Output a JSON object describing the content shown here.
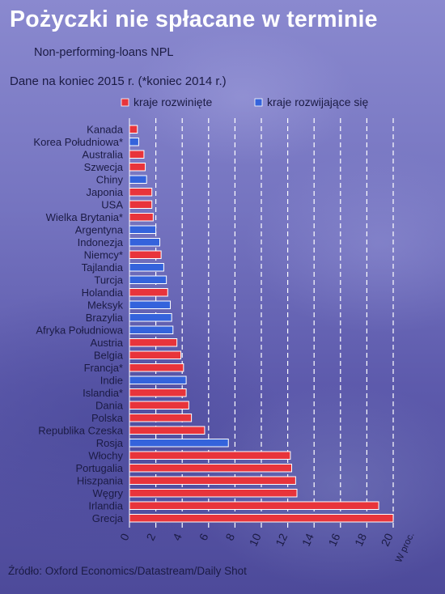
{
  "header": {
    "title": "Pożyczki nie spłacane w terminie",
    "subtitle": "Non-performing-loans NPL",
    "note": "Dane na koniec 2015 r. (*koniec 2014 r.)"
  },
  "footer": {
    "source": "Źródło: Oxford Economics/Datastream/Daily Shot"
  },
  "chart_data": {
    "type": "bar",
    "orientation": "horizontal",
    "title": "",
    "xlabel": "W proc.",
    "ylabel": "",
    "xlim": [
      0,
      20
    ],
    "x_ticks": [
      0,
      2,
      4,
      6,
      8,
      10,
      12,
      14,
      16,
      18,
      20
    ],
    "grid": "vertical dashed",
    "legend_position": "top-right",
    "legend": [
      {
        "key": "developed",
        "label": "kraje rozwinięte",
        "color": "#e8343b"
      },
      {
        "key": "developing",
        "label": "kraje rozwijające się",
        "color": "#3463dc"
      }
    ],
    "categories": [
      "Kanada",
      "Korea Południowa*",
      "Australia",
      "Szwecja",
      "Chiny",
      "Japonia",
      "USA",
      "Wielka Brytania*",
      "Argentyna",
      "Indonezja",
      "Niemcy*",
      "Tajlandia",
      "Turcja",
      "Holandia",
      "Meksyk",
      "Brazylia",
      "Afryka Południowa",
      "Austria",
      "Belgia",
      "Francja*",
      "Indie",
      "Islandia*",
      "Dania",
      "Polska",
      "Republika Czeska",
      "Rosja",
      "Włochy",
      "Portugalia",
      "Hiszpania",
      "Węgry",
      "Irlandia",
      "Grecja"
    ],
    "groups": [
      "developed",
      "developing",
      "developed",
      "developed",
      "developing",
      "developed",
      "developed",
      "developed",
      "developing",
      "developing",
      "developed",
      "developing",
      "developing",
      "developed",
      "developing",
      "developing",
      "developing",
      "developed",
      "developed",
      "developed",
      "developing",
      "developed",
      "developed",
      "developed",
      "developed",
      "developing",
      "developed",
      "developed",
      "developed",
      "developed",
      "developed",
      "developed"
    ],
    "values": [
      0.6,
      0.7,
      1.1,
      1.2,
      1.3,
      1.7,
      1.7,
      1.8,
      2.0,
      2.3,
      2.4,
      2.6,
      2.8,
      2.9,
      3.1,
      3.2,
      3.3,
      3.6,
      3.9,
      4.1,
      4.3,
      4.3,
      4.5,
      4.7,
      5.7,
      7.5,
      12.2,
      12.3,
      12.6,
      12.7,
      18.9,
      20.0
    ]
  }
}
